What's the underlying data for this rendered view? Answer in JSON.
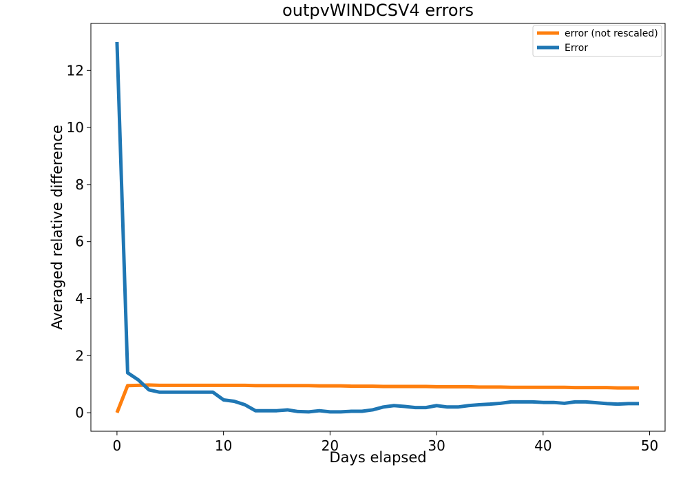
{
  "chart_data": {
    "type": "line",
    "title": "outpvWINDCSV4 errors",
    "xlabel": "Days elapsed",
    "ylabel": "Averaged relative difference",
    "xlim": [
      -2.45,
      51.45
    ],
    "ylim": [
      -0.65,
      13.65
    ],
    "xticks": [
      0,
      10,
      20,
      30,
      40,
      50
    ],
    "yticks": [
      0,
      2,
      4,
      6,
      8,
      10,
      12
    ],
    "grid": false,
    "legend_position": "top-right",
    "x": [
      0,
      1,
      2,
      3,
      4,
      5,
      6,
      7,
      8,
      9,
      10,
      11,
      12,
      13,
      14,
      15,
      16,
      17,
      18,
      19,
      20,
      21,
      22,
      23,
      24,
      25,
      26,
      27,
      28,
      29,
      30,
      31,
      32,
      33,
      34,
      35,
      36,
      37,
      38,
      39,
      40,
      41,
      42,
      43,
      44,
      45,
      46,
      47,
      48,
      49
    ],
    "series": [
      {
        "name": "error (not rescaled)",
        "color": "#ff7f0e",
        "values": [
          0.0,
          0.95,
          0.96,
          0.97,
          0.96,
          0.96,
          0.96,
          0.96,
          0.96,
          0.96,
          0.96,
          0.96,
          0.96,
          0.95,
          0.95,
          0.95,
          0.95,
          0.95,
          0.95,
          0.94,
          0.94,
          0.94,
          0.93,
          0.93,
          0.93,
          0.92,
          0.92,
          0.92,
          0.92,
          0.92,
          0.91,
          0.91,
          0.91,
          0.91,
          0.9,
          0.9,
          0.9,
          0.89,
          0.89,
          0.89,
          0.89,
          0.89,
          0.89,
          0.88,
          0.88,
          0.88,
          0.88,
          0.87,
          0.87,
          0.87
        ]
      },
      {
        "name": "Error",
        "color": "#1f77b4",
        "values": [
          13.0,
          1.4,
          1.15,
          0.8,
          0.72,
          0.72,
          0.72,
          0.72,
          0.72,
          0.72,
          0.45,
          0.4,
          0.28,
          0.07,
          0.07,
          0.07,
          0.1,
          0.04,
          0.03,
          0.07,
          0.03,
          0.03,
          0.05,
          0.05,
          0.1,
          0.2,
          0.25,
          0.22,
          0.18,
          0.18,
          0.25,
          0.2,
          0.2,
          0.25,
          0.28,
          0.3,
          0.33,
          0.38,
          0.38,
          0.38,
          0.36,
          0.36,
          0.33,
          0.38,
          0.38,
          0.35,
          0.32,
          0.3,
          0.32,
          0.32
        ]
      }
    ]
  }
}
